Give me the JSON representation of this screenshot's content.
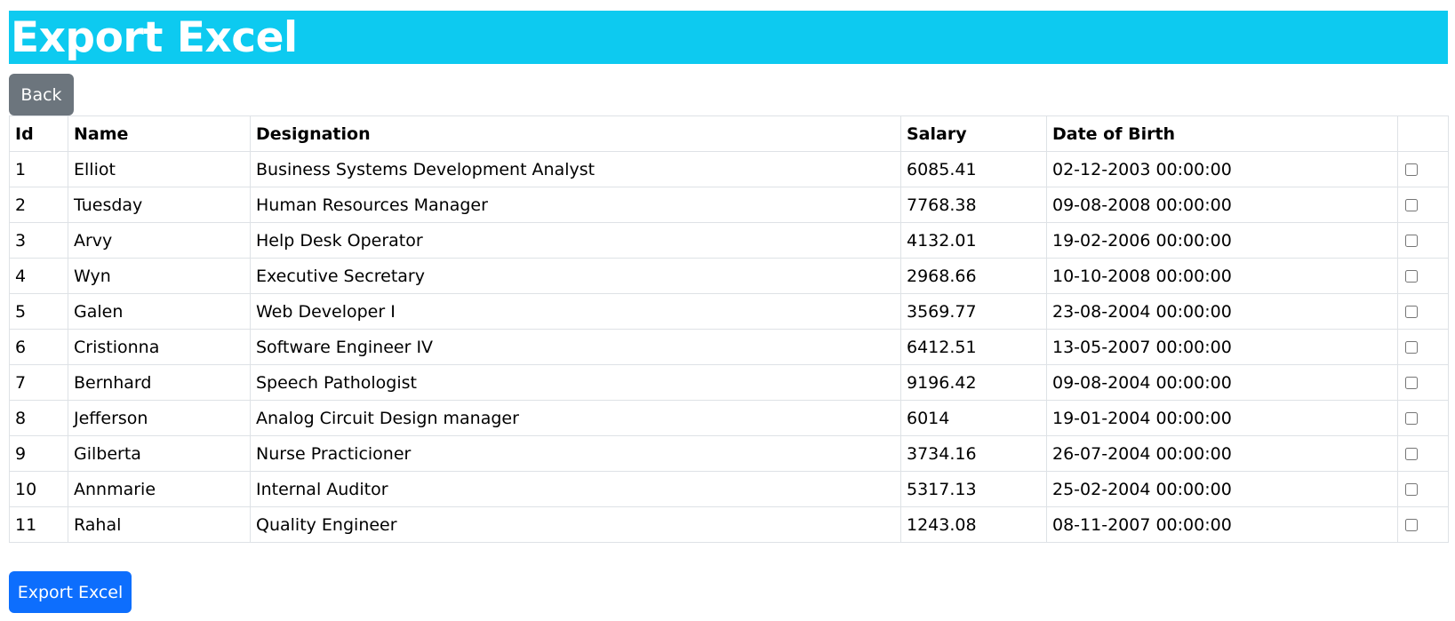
{
  "header": {
    "title": "Export Excel"
  },
  "buttons": {
    "back": "Back",
    "export": "Export Excel"
  },
  "table": {
    "columns": [
      "Id",
      "Name",
      "Designation",
      "Salary",
      "Date of Birth",
      ""
    ],
    "rows": [
      {
        "id": "1",
        "name": "Elliot",
        "designation": "Business Systems Development Analyst",
        "salary": "6085.41",
        "dob": "02-12-2003 00:00:00",
        "checked": false
      },
      {
        "id": "2",
        "name": "Tuesday",
        "designation": "Human Resources Manager",
        "salary": "7768.38",
        "dob": "09-08-2008 00:00:00",
        "checked": false
      },
      {
        "id": "3",
        "name": "Arvy",
        "designation": "Help Desk Operator",
        "salary": "4132.01",
        "dob": "19-02-2006 00:00:00",
        "checked": false
      },
      {
        "id": "4",
        "name": "Wyn",
        "designation": "Executive Secretary",
        "salary": "2968.66",
        "dob": "10-10-2008 00:00:00",
        "checked": false
      },
      {
        "id": "5",
        "name": "Galen",
        "designation": "Web Developer I",
        "salary": "3569.77",
        "dob": "23-08-2004 00:00:00",
        "checked": false
      },
      {
        "id": "6",
        "name": "Cristionna",
        "designation": "Software Engineer IV",
        "salary": "6412.51",
        "dob": "13-05-2007 00:00:00",
        "checked": false
      },
      {
        "id": "7",
        "name": "Bernhard",
        "designation": "Speech Pathologist",
        "salary": "9196.42",
        "dob": "09-08-2004 00:00:00",
        "checked": false
      },
      {
        "id": "8",
        "name": "Jefferson",
        "designation": "Analog Circuit Design manager",
        "salary": "6014",
        "dob": "19-01-2004 00:00:00",
        "checked": false
      },
      {
        "id": "9",
        "name": "Gilberta",
        "designation": "Nurse Practicioner",
        "salary": "3734.16",
        "dob": "26-07-2004 00:00:00",
        "checked": false
      },
      {
        "id": "10",
        "name": "Annmarie",
        "designation": "Internal Auditor",
        "salary": "5317.13",
        "dob": "25-02-2004 00:00:00",
        "checked": false
      },
      {
        "id": "11",
        "name": "Rahal",
        "designation": "Quality Engineer",
        "salary": "1243.08",
        "dob": "08-11-2007 00:00:00",
        "checked": false
      }
    ]
  },
  "colors": {
    "header_bg": "#0dcaf0",
    "back_button": "#6c757d",
    "export_button": "#0d6efd"
  }
}
